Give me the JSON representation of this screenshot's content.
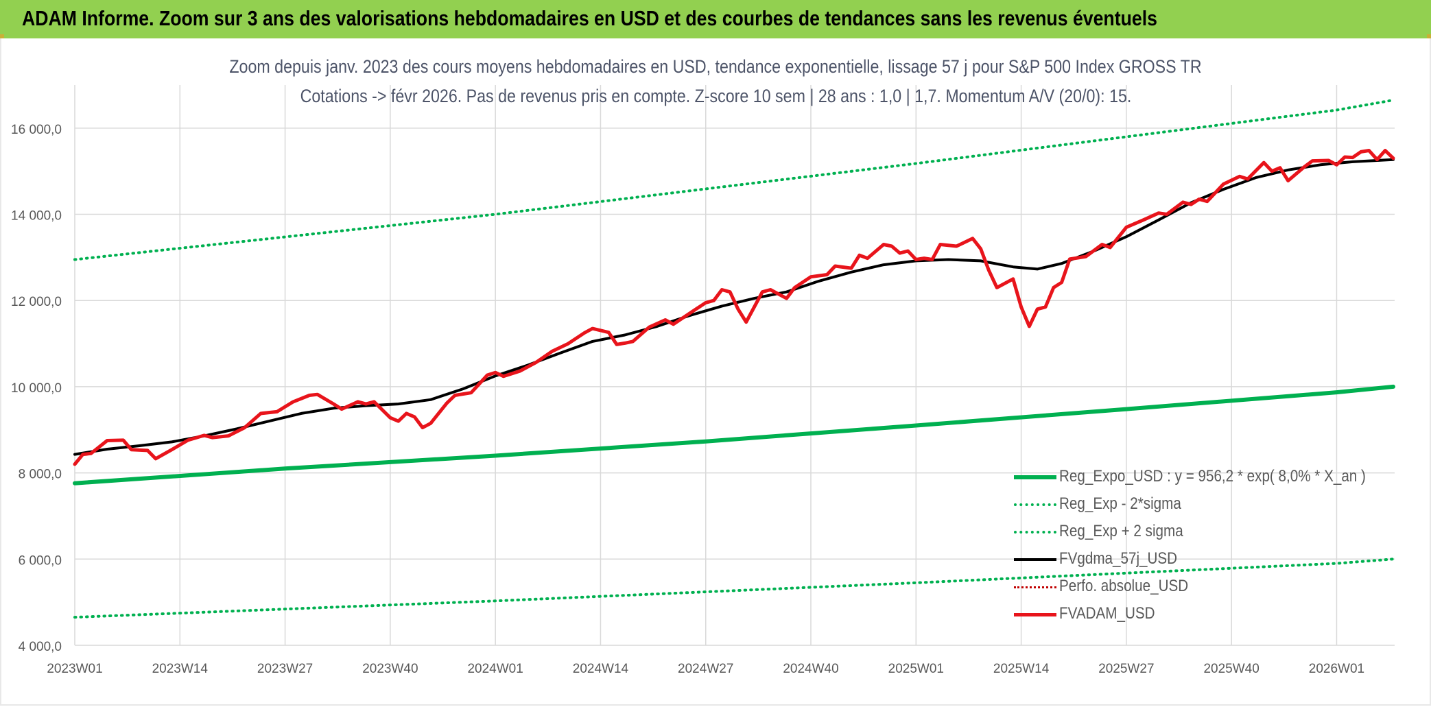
{
  "header": {
    "title": "ADAM Informe. Zoom sur 3 ans des valorisations hebdomadaires en USD et des courbes de tendances sans les revenus éventuels"
  },
  "colors": {
    "banner": "#92d050",
    "reg_expo": "#00b050",
    "fvgdma": "#000000",
    "fvadam": "#e8141b",
    "perfo": "#c00000",
    "grid": "#d9d9d9",
    "text": "#595959",
    "subtitle": "#4d5468"
  },
  "chart_data": {
    "type": "line",
    "title": "Zoom depuis janv. 2023 des cours moyens hebdomadaires en USD, tendance exponentielle, lissage 57 j pour S&P 500 Index GROSS TR",
    "subtitle": "Cotations -> févr 2026. Pas de revenus pris en compte. Z-score 10 sem | 28 ans : 1,0 | 1,7. Momentum A/V (20/0): 15.",
    "xlabel": "",
    "ylabel": "",
    "ylim": [
      4000,
      17000
    ],
    "y_ticks": [
      4000,
      6000,
      8000,
      10000,
      12000,
      14000,
      16000
    ],
    "y_tick_labels": [
      "4 000,0",
      "6 000,0",
      "8 000,0",
      "10 000,0",
      "12 000,0",
      "14 000,0",
      "16 000,0"
    ],
    "x_ticks": [
      "2023W01",
      "2023W14",
      "2023W27",
      "2023W40",
      "2024W01",
      "2024W14",
      "2024W27",
      "2024W40",
      "2025W01",
      "2025W14",
      "2025W27",
      "2025W40",
      "2026W01"
    ],
    "x_start": "2023W01",
    "x_end": "2026W08",
    "grid": true,
    "legend_position": "bottom-right",
    "series": [
      {
        "name": "Reg_Expo_USD : y = 956,2 * exp( 8,0% *  X_an )",
        "style": "solid-thick",
        "points": [
          [
            "2023W01",
            7760
          ],
          [
            "2023W27",
            8100
          ],
          [
            "2024W01",
            8400
          ],
          [
            "2024W27",
            8730
          ],
          [
            "2025W01",
            9100
          ],
          [
            "2025W27",
            9480
          ],
          [
            "2026W01",
            9870
          ],
          [
            "2026W08",
            10000
          ]
        ]
      },
      {
        "name": "Reg_Exp - 2*sigma",
        "style": "dotted",
        "points": [
          [
            "2023W01",
            4650
          ],
          [
            "2024W01",
            5030
          ],
          [
            "2025W01",
            5450
          ],
          [
            "2026W01",
            5900
          ],
          [
            "2026W08",
            6000
          ]
        ]
      },
      {
        "name": "Reg_Exp + 2 sigma",
        "style": "dotted",
        "points": [
          [
            "2023W01",
            12950
          ],
          [
            "2024W01",
            14000
          ],
          [
            "2025W01",
            15180
          ],
          [
            "2026W01",
            16420
          ],
          [
            "2026W08",
            16650
          ]
        ]
      },
      {
        "name": "FVgdma_57j_USD",
        "style": "solid",
        "points": [
          [
            "2023W01",
            8430
          ],
          [
            "2023W05",
            8550
          ],
          [
            "2023W09",
            8630
          ],
          [
            "2023W13",
            8720
          ],
          [
            "2023W17",
            8860
          ],
          [
            "2023W21",
            9020
          ],
          [
            "2023W25",
            9200
          ],
          [
            "2023W29",
            9380
          ],
          [
            "2023W33",
            9500
          ],
          [
            "2023W37",
            9560
          ],
          [
            "2023W41",
            9600
          ],
          [
            "2023W45",
            9700
          ],
          [
            "2023W49",
            9950
          ],
          [
            "2024W01",
            10250
          ],
          [
            "2024W05",
            10500
          ],
          [
            "2024W09",
            10780
          ],
          [
            "2024W13",
            11050
          ],
          [
            "2024W17",
            11200
          ],
          [
            "2024W21",
            11400
          ],
          [
            "2024W25",
            11650
          ],
          [
            "2024W29",
            11870
          ],
          [
            "2024W33",
            12050
          ],
          [
            "2024W37",
            12200
          ],
          [
            "2024W41",
            12450
          ],
          [
            "2024W45",
            12660
          ],
          [
            "2024W49",
            12830
          ],
          [
            "2025W01",
            12920
          ],
          [
            "2025W05",
            12950
          ],
          [
            "2025W09",
            12920
          ],
          [
            "2025W13",
            12780
          ],
          [
            "2025W16",
            12730
          ],
          [
            "2025W19",
            12860
          ],
          [
            "2025W23",
            13150
          ],
          [
            "2025W27",
            13480
          ],
          [
            "2025W31",
            13870
          ],
          [
            "2025W35",
            14270
          ],
          [
            "2025W39",
            14580
          ],
          [
            "2025W43",
            14850
          ],
          [
            "2025W47",
            15030
          ],
          [
            "2025W51",
            15150
          ],
          [
            "2026W03",
            15220
          ],
          [
            "2026W08",
            15270
          ]
        ]
      },
      {
        "name": "Perfo. absolue_USD",
        "style": "dotted",
        "points": []
      },
      {
        "name": "FVADAM_USD",
        "style": "solid-thick",
        "points": [
          [
            "2023W01",
            8200
          ],
          [
            "2023W02",
            8430
          ],
          [
            "2023W03",
            8450
          ],
          [
            "2023W05",
            8750
          ],
          [
            "2023W07",
            8760
          ],
          [
            "2023W08",
            8540
          ],
          [
            "2023W10",
            8520
          ],
          [
            "2023W11",
            8330
          ],
          [
            "2023W13",
            8540
          ],
          [
            "2023W15",
            8760
          ],
          [
            "2023W17",
            8870
          ],
          [
            "2023W18",
            8820
          ],
          [
            "2023W20",
            8860
          ],
          [
            "2023W22",
            9050
          ],
          [
            "2023W24",
            9380
          ],
          [
            "2023W26",
            9420
          ],
          [
            "2023W28",
            9650
          ],
          [
            "2023W30",
            9800
          ],
          [
            "2023W31",
            9820
          ],
          [
            "2023W33",
            9600
          ],
          [
            "2023W34",
            9480
          ],
          [
            "2023W36",
            9650
          ],
          [
            "2023W37",
            9600
          ],
          [
            "2023W38",
            9650
          ],
          [
            "2023W40",
            9280
          ],
          [
            "2023W41",
            9200
          ],
          [
            "2023W42",
            9380
          ],
          [
            "2023W43",
            9300
          ],
          [
            "2023W44",
            9050
          ],
          [
            "2023W45",
            9150
          ],
          [
            "2023W47",
            9620
          ],
          [
            "2023W48",
            9800
          ],
          [
            "2023W50",
            9860
          ],
          [
            "2023W52",
            10270
          ],
          [
            "2024W01",
            10330
          ],
          [
            "2024W02",
            10240
          ],
          [
            "2024W04",
            10360
          ],
          [
            "2024W06",
            10560
          ],
          [
            "2024W08",
            10820
          ],
          [
            "2024W10",
            11000
          ],
          [
            "2024W12",
            11250
          ],
          [
            "2024W13",
            11350
          ],
          [
            "2024W15",
            11260
          ],
          [
            "2024W16",
            10980
          ],
          [
            "2024W17",
            11010
          ],
          [
            "2024W18",
            11050
          ],
          [
            "2024W20",
            11380
          ],
          [
            "2024W22",
            11550
          ],
          [
            "2024W23",
            11450
          ],
          [
            "2024W25",
            11700
          ],
          [
            "2024W27",
            11950
          ],
          [
            "2024W28",
            12000
          ],
          [
            "2024W29",
            12250
          ],
          [
            "2024W30",
            12200
          ],
          [
            "2024W31",
            11800
          ],
          [
            "2024W32",
            11500
          ],
          [
            "2024W34",
            12200
          ],
          [
            "2024W35",
            12250
          ],
          [
            "2024W37",
            12050
          ],
          [
            "2024W38",
            12300
          ],
          [
            "2024W40",
            12550
          ],
          [
            "2024W42",
            12600
          ],
          [
            "2024W43",
            12800
          ],
          [
            "2024W45",
            12750
          ],
          [
            "2024W46",
            13050
          ],
          [
            "2024W47",
            12980
          ],
          [
            "2024W49",
            13300
          ],
          [
            "2024W50",
            13260
          ],
          [
            "2024W51",
            13100
          ],
          [
            "2024W52",
            13150
          ],
          [
            "2025W01",
            12950
          ],
          [
            "2025W02",
            12980
          ],
          [
            "2025W03",
            12950
          ],
          [
            "2025W04",
            13300
          ],
          [
            "2025W06",
            13260
          ],
          [
            "2025W07",
            13350
          ],
          [
            "2025W08",
            13440
          ],
          [
            "2025W09",
            13200
          ],
          [
            "2025W10",
            12700
          ],
          [
            "2025W11",
            12300
          ],
          [
            "2025W13",
            12500
          ],
          [
            "2025W14",
            11850
          ],
          [
            "2025W15",
            11400
          ],
          [
            "2025W16",
            11800
          ],
          [
            "2025W17",
            11850
          ],
          [
            "2025W18",
            12300
          ],
          [
            "2025W19",
            12420
          ],
          [
            "2025W20",
            12960
          ],
          [
            "2025W22",
            13020
          ],
          [
            "2025W24",
            13300
          ],
          [
            "2025W25",
            13230
          ],
          [
            "2025W27",
            13700
          ],
          [
            "2025W29",
            13860
          ],
          [
            "2025W31",
            14030
          ],
          [
            "2025W32",
            14000
          ],
          [
            "2025W34",
            14280
          ],
          [
            "2025W35",
            14230
          ],
          [
            "2025W36",
            14350
          ],
          [
            "2025W37",
            14300
          ],
          [
            "2025W39",
            14700
          ],
          [
            "2025W41",
            14880
          ],
          [
            "2025W42",
            14820
          ],
          [
            "2025W44",
            15200
          ],
          [
            "2025W45",
            15000
          ],
          [
            "2025W46",
            15080
          ],
          [
            "2025W47",
            14780
          ],
          [
            "2025W49",
            15100
          ],
          [
            "2025W50",
            15240
          ],
          [
            "2025W52",
            15250
          ],
          [
            "2026W01",
            15150
          ],
          [
            "2026W02",
            15330
          ],
          [
            "2026W03",
            15320
          ],
          [
            "2026W04",
            15450
          ],
          [
            "2026W05",
            15480
          ],
          [
            "2026W06",
            15270
          ],
          [
            "2026W07",
            15480
          ],
          [
            "2026W08",
            15300
          ]
        ]
      }
    ]
  }
}
